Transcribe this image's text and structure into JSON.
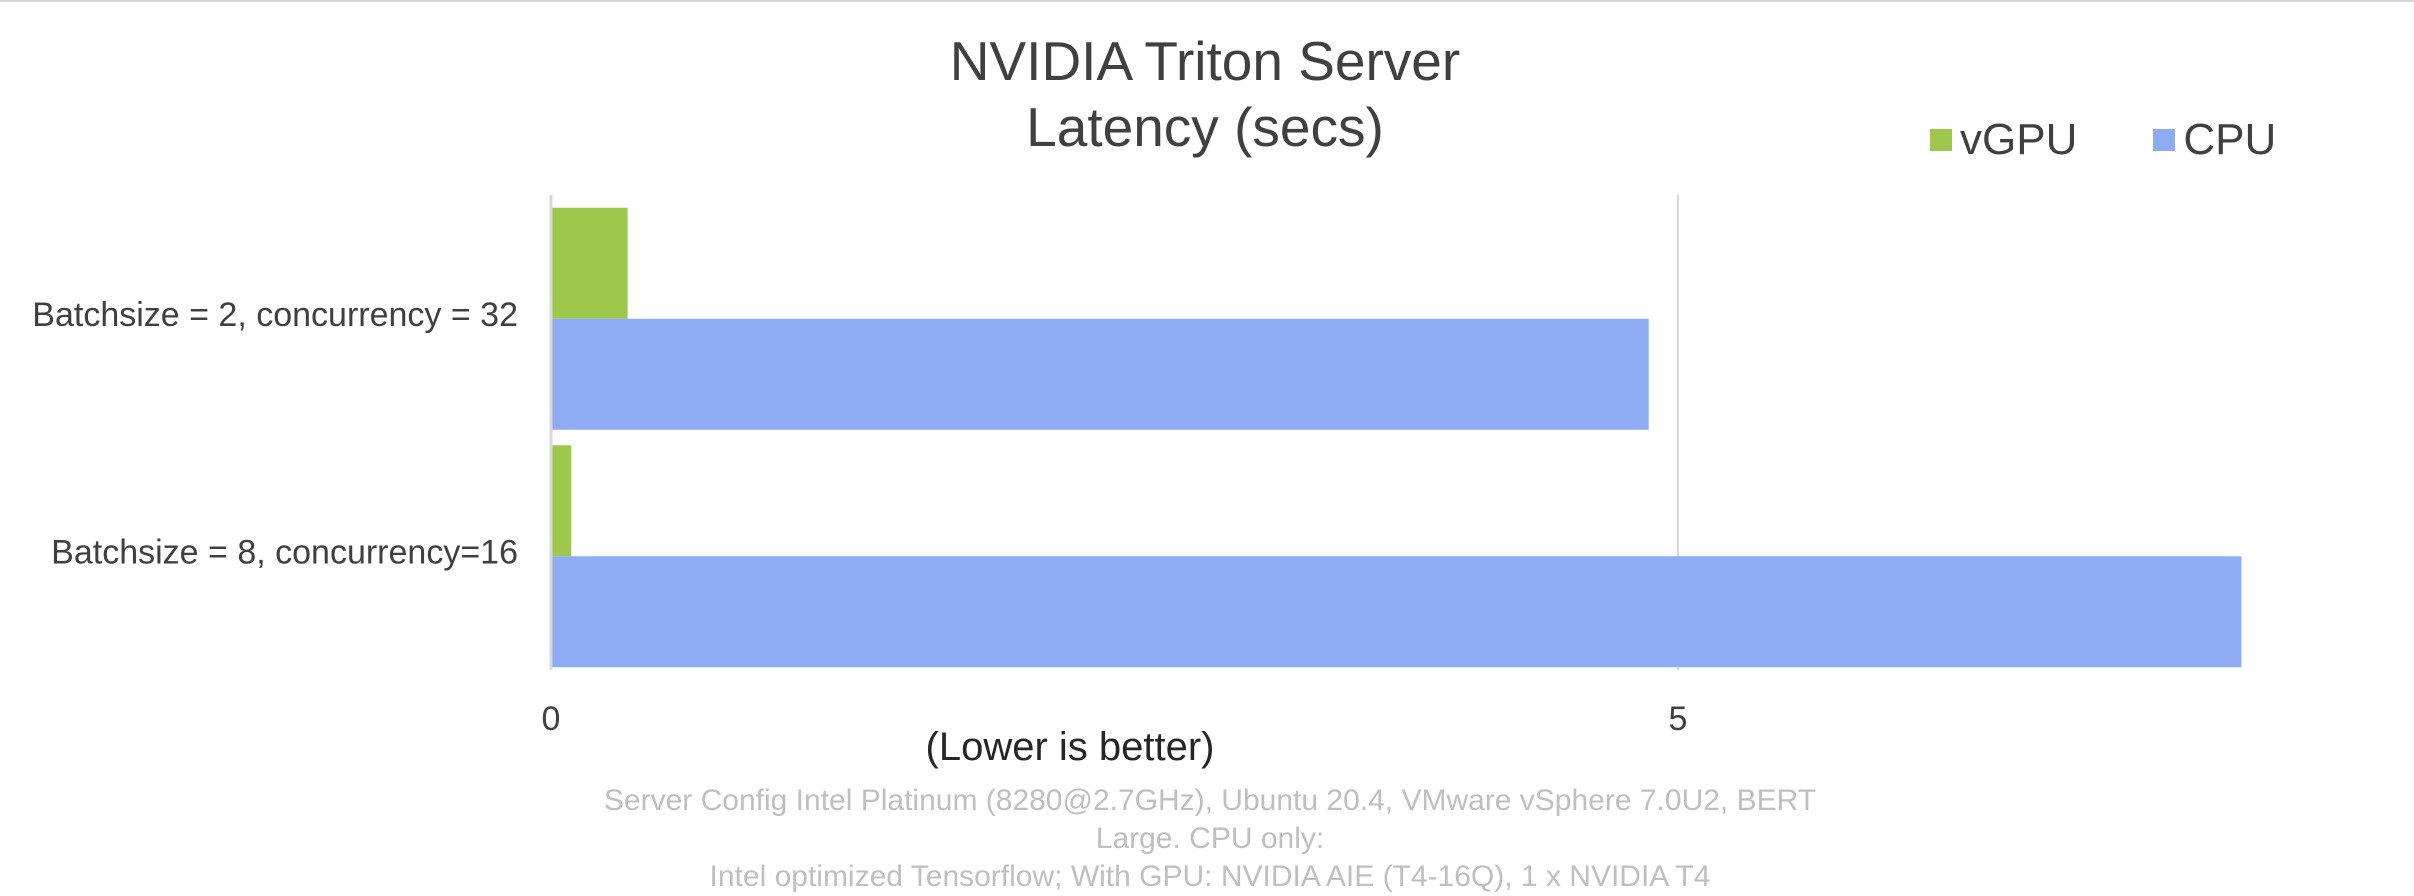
{
  "chart_data": {
    "type": "bar",
    "orientation": "horizontal",
    "title_lines": [
      "NVIDIA Triton Server",
      "Latency (secs)"
    ],
    "categories": [
      "Batchsize = 2, concurrency = 32",
      "Batchsize = 8, concurrency=16"
    ],
    "series": [
      {
        "name": "vGPU",
        "color": "#9dc84b",
        "values": [
          0.34,
          0.09
        ]
      },
      {
        "name": "CPU",
        "color": "#8fabf3",
        "values": [
          4.87,
          7.5
        ]
      }
    ],
    "xlim": [
      0,
      7.5
    ],
    "x_ticks": [
      "0",
      "5"
    ],
    "xlabel": "(Lower is better)",
    "grid": true,
    "legend_position": "top-right"
  },
  "footnote_lines": [
    "Server Config Intel Platinum (8280@2.7GHz), Ubuntu 20.4, VMware vSphere 7.0U2, BERT Large. CPU only:",
    "Intel optimized Tensorflow; With GPU: NVIDIA AIE (T4-16Q), 1 x NVIDIA T4"
  ]
}
